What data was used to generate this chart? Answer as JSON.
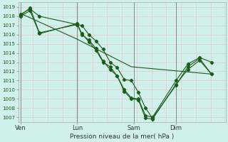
{
  "xlabel": "Pression niveau de la mer( hPa )",
  "background_color": "#cff0eb",
  "grid_color_h": "#e8c8c8",
  "grid_color_v": "#e8c8c8",
  "vline_color": "#888888",
  "line_color": "#1a5c1a",
  "ylim": [
    1006.5,
    1019.5
  ],
  "yticks": [
    1007,
    1008,
    1009,
    1010,
    1011,
    1012,
    1013,
    1014,
    1015,
    1016,
    1017,
    1018,
    1019
  ],
  "xtick_labels": [
    "Ven",
    "Lun",
    "Sam",
    "Dim"
  ],
  "xtick_positions": [
    1,
    25,
    49,
    67
  ],
  "vlines_x": [
    1,
    25,
    49,
    67
  ],
  "xlim": [
    0,
    88
  ],
  "n_vgrid": 14,
  "series1_x": [
    1,
    5,
    9,
    25,
    27,
    30,
    33,
    36,
    39,
    42,
    45,
    48,
    51,
    54,
    57,
    67,
    72,
    77,
    82
  ],
  "series1_y": [
    1018.2,
    1018.8,
    1018.0,
    1017.1,
    1017.0,
    1016.0,
    1015.3,
    1014.4,
    1013.0,
    1012.4,
    1011.1,
    1011.0,
    1009.7,
    1008.0,
    1006.9,
    1010.5,
    1012.5,
    1013.4,
    1011.7
  ],
  "series2_x": [
    1,
    5,
    9,
    25,
    27,
    30,
    33,
    36,
    39,
    42,
    45,
    48,
    51,
    54,
    57,
    67,
    72,
    77,
    82
  ],
  "series2_y": [
    1018.0,
    1018.6,
    1016.1,
    1017.2,
    1016.1,
    1015.2,
    1014.3,
    1013.0,
    1012.5,
    1011.5,
    1009.8,
    1009.0,
    1008.9,
    1006.9,
    1006.8,
    1010.6,
    1012.2,
    1013.2,
    1011.7
  ],
  "series3_x": [
    1,
    5,
    9,
    25,
    27,
    30,
    33,
    36,
    39,
    42,
    45,
    48,
    51,
    54,
    57,
    67,
    72,
    77,
    82
  ],
  "series3_y": [
    1018.1,
    1018.9,
    1016.2,
    1017.1,
    1016.0,
    1015.4,
    1014.5,
    1013.1,
    1012.2,
    1011.5,
    1010.0,
    1009.1,
    1009.0,
    1007.2,
    1007.0,
    1011.0,
    1012.8,
    1013.5,
    1013.0
  ],
  "series4_x": [
    1,
    25,
    48,
    82
  ],
  "series4_y": [
    1018.3,
    1015.5,
    1012.5,
    1011.7
  ],
  "ytick_fontsize": 5.0,
  "xtick_fontsize": 6.0,
  "xlabel_fontsize": 6.5
}
